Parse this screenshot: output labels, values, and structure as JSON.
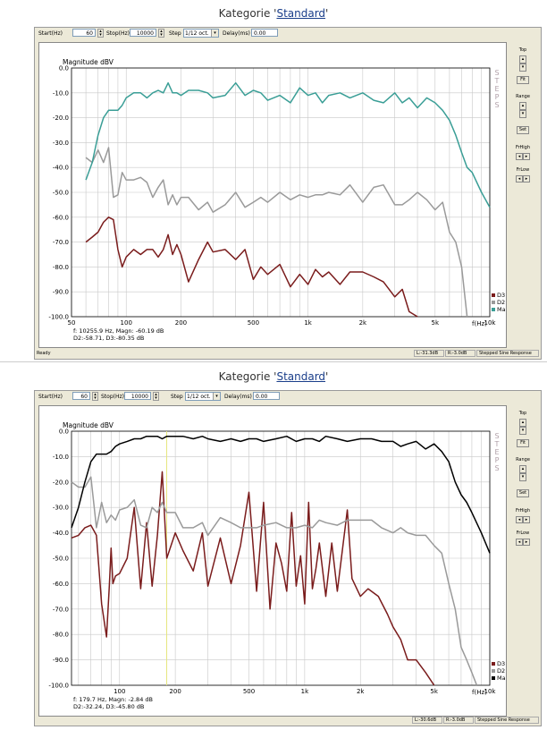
{
  "panels": [
    {
      "title_prefix": "Kategorie '",
      "title_link": "Standard",
      "title_suffix": "'",
      "toolbar": {
        "start_label": "Start(Hz)",
        "start_value": "60",
        "stop_label": "Stop(Hz)",
        "stop_value": "10000",
        "step_label": "Step",
        "step_value": "1/12 oct.",
        "delay_label": "Delay(ms)",
        "delay_value": "0.00"
      },
      "side": {
        "top": "Top",
        "fit": "Fit",
        "range": "Range",
        "set": "Set",
        "frhigh": "FrHigh",
        "frlow": "FrLow"
      },
      "readout": [
        "f: 10255.9 Hz, Magn: -60.19 dB",
        "D2:-58.71, D3:-80.35 dB"
      ],
      "status": {
        "left": "Ready",
        "l": "L:-31.3dB",
        "r": "R:-3.0dB",
        "mode": "Stepped Sine Response"
      },
      "chart_data": {
        "type": "line",
        "ylabel": "Magnitude dBV",
        "xlabel": "f(Hz)",
        "steps_label": "STEPS",
        "xscale": "log",
        "xlim": [
          50,
          10000
        ],
        "ylim": [
          -100,
          0
        ],
        "x_ticks": [
          {
            "v": 50,
            "label": "50"
          },
          {
            "v": 100,
            "label": "100"
          },
          {
            "v": 200,
            "label": "200"
          },
          {
            "v": 500,
            "label": "500"
          },
          {
            "v": 1000,
            "label": "1k"
          },
          {
            "v": 2000,
            "label": "2k"
          },
          {
            "v": 5000,
            "label": "5k"
          },
          {
            "v": 10000,
            "label": "10k"
          }
        ],
        "y_ticks": [
          {
            "v": 0,
            "label": "0.0"
          },
          {
            "v": -10,
            "label": "-10.0"
          },
          {
            "v": -20,
            "label": "-20.0"
          },
          {
            "v": -30,
            "label": "-30.0"
          },
          {
            "v": -40,
            "label": "-40.0"
          },
          {
            "v": -50,
            "label": "-50.0"
          },
          {
            "v": -60,
            "label": "-60.0"
          },
          {
            "v": -70,
            "label": "-70.0"
          },
          {
            "v": -80,
            "label": "-80.0"
          },
          {
            "v": -90,
            "label": "-90.0"
          },
          {
            "v": -100,
            "label": "-100.0"
          }
        ],
        "grid": true,
        "legend": "bottom-right",
        "series": [
          {
            "name": "Magn",
            "color": "#3a9e96",
            "x": [
              60,
              65,
              70,
              75,
              80,
              85,
              90,
              95,
              100,
              110,
              120,
              130,
              140,
              150,
              160,
              170,
              180,
              190,
              200,
              220,
              250,
              280,
              300,
              350,
              400,
              450,
              500,
              550,
              600,
              700,
              800,
              900,
              1000,
              1100,
              1200,
              1300,
              1500,
              1700,
              2000,
              2300,
              2600,
              3000,
              3300,
              3600,
              4000,
              4500,
              5000,
              5500,
              6000,
              6500,
              7000,
              7500,
              8000,
              9000,
              10000
            ],
            "y": [
              -45,
              -38,
              -27,
              -20,
              -17,
              -17,
              -17,
              -15,
              -12,
              -10,
              -10,
              -12,
              -10,
              -9,
              -10,
              -6,
              -10,
              -10,
              -11,
              -9,
              -9,
              -10,
              -12,
              -11,
              -6,
              -11,
              -9,
              -10,
              -13,
              -11,
              -14,
              -8,
              -11,
              -10,
              -14,
              -11,
              -10,
              -12,
              -10,
              -13,
              -14,
              -10,
              -14,
              -12,
              -16,
              -12,
              -14,
              -17,
              -21,
              -27,
              -34,
              -40,
              -42,
              -50,
              -56
            ]
          },
          {
            "name": "D2",
            "color": "#9a9a9a",
            "x": [
              60,
              65,
              70,
              75,
              80,
              85,
              90,
              95,
              100,
              110,
              120,
              130,
              140,
              150,
              160,
              170,
              180,
              190,
              200,
              220,
              250,
              280,
              300,
              350,
              400,
              450,
              500,
              550,
              600,
              700,
              800,
              900,
              1000,
              1100,
              1200,
              1300,
              1500,
              1700,
              2000,
              2300,
              2600,
              3000,
              3300,
              3600,
              4000,
              4500,
              5000,
              5500,
              6000,
              6500,
              7000,
              7500
            ],
            "y": [
              -36,
              -38,
              -33,
              -38,
              -32,
              -52,
              -51,
              -42,
              -45,
              -45,
              -44,
              -46,
              -52,
              -48,
              -45,
              -55,
              -51,
              -55,
              -52,
              -52,
              -57,
              -54,
              -58,
              -55,
              -50,
              -56,
              -54,
              -52,
              -54,
              -50,
              -53,
              -51,
              -52,
              -51,
              -51,
              -50,
              -51,
              -47,
              -54,
              -48,
              -47,
              -55,
              -55,
              -53,
              -50,
              -53,
              -57,
              -54,
              -66,
              -70,
              -80,
              -100
            ]
          },
          {
            "name": "D3",
            "color": "#7a1c1c",
            "x": [
              60,
              65,
              70,
              75,
              80,
              85,
              90,
              95,
              100,
              110,
              120,
              130,
              140,
              150,
              160,
              170,
              180,
              190,
              200,
              220,
              250,
              280,
              300,
              350,
              400,
              450,
              500,
              550,
              600,
              700,
              800,
              900,
              1000,
              1100,
              1200,
              1300,
              1500,
              1700,
              2000,
              2300,
              2600,
              3000,
              3300,
              3600,
              4000
            ],
            "y": [
              -70,
              -68,
              -66,
              -62,
              -60,
              -61,
              -73,
              -80,
              -76,
              -73,
              -75,
              -73,
              -73,
              -76,
              -73,
              -67,
              -75,
              -71,
              -75,
              -86,
              -77,
              -70,
              -74,
              -73,
              -77,
              -73,
              -85,
              -80,
              -83,
              -79,
              -88,
              -83,
              -87,
              -81,
              -84,
              -82,
              -87,
              -82,
              -82,
              -84,
              -86,
              -92,
              -89,
              -98,
              -100
            ]
          }
        ]
      }
    },
    {
      "title_prefix": "Kategorie '",
      "title_link": "Standard",
      "title_suffix": "'",
      "toolbar": {
        "start_label": "Start(Hz)",
        "start_value": "60",
        "stop_label": "Stop(Hz)",
        "stop_value": "10000",
        "step_label": "Step",
        "step_value": "1/12 oct.",
        "delay_label": "Delay(ms)",
        "delay_value": "0.00"
      },
      "side": {
        "top": "Top",
        "fit": "Fit",
        "range": "Range",
        "set": "Set",
        "frhigh": "FrHigh",
        "frlow": "FrLow"
      },
      "readout": [
        "f:  179.7 Hz, Magn: -2.84 dB",
        "D2:-32.24, D3:-45.80 dB"
      ],
      "status": {
        "left": "",
        "l": "L:-30.6dB",
        "r": "R:-3.0dB",
        "mode": "Stepped Sine Response"
      },
      "chart_data": {
        "type": "line",
        "ylabel": "Magnitude dBV",
        "xlabel": "f(Hz)",
        "steps_label": "STEPS",
        "xscale": "log",
        "xlim": [
          55,
          10000
        ],
        "ylim": [
          -100,
          0
        ],
        "x_ticks": [
          {
            "v": 100,
            "label": "100"
          },
          {
            "v": 200,
            "label": "200"
          },
          {
            "v": 500,
            "label": "500"
          },
          {
            "v": 1000,
            "label": "1k"
          },
          {
            "v": 2000,
            "label": "2k"
          },
          {
            "v": 5000,
            "label": "5k"
          },
          {
            "v": 10000,
            "label": "10k"
          }
        ],
        "y_ticks": [
          {
            "v": 0,
            "label": "0.0"
          },
          {
            "v": -10,
            "label": "-10.0"
          },
          {
            "v": -20,
            "label": "-20.0"
          },
          {
            "v": -30,
            "label": "-30.0"
          },
          {
            "v": -40,
            "label": "-40.0"
          },
          {
            "v": -50,
            "label": "-50.0"
          },
          {
            "v": -60,
            "label": "-60.0"
          },
          {
            "v": -70,
            "label": "-70.0"
          },
          {
            "v": -80,
            "label": "-80.0"
          },
          {
            "v": -90,
            "label": "-90.0"
          },
          {
            "v": -100,
            "label": "-100.0"
          }
        ],
        "grid": true,
        "legend": "bottom-right",
        "cursor_x": 179.7,
        "series": [
          {
            "name": "Magn",
            "color": "#000000",
            "x": [
              55,
              60,
              65,
              70,
              75,
              80,
              85,
              90,
              95,
              100,
              110,
              120,
              130,
              140,
              150,
              160,
              170,
              180,
              200,
              220,
              250,
              280,
              300,
              350,
              400,
              450,
              500,
              550,
              600,
              700,
              800,
              900,
              1000,
              1100,
              1200,
              1300,
              1500,
              1700,
              2000,
              2300,
              2600,
              3000,
              3300,
              3600,
              4000,
              4500,
              5000,
              5500,
              6000,
              6500,
              7000,
              7500,
              8000,
              9000,
              10000
            ],
            "y": [
              -38,
              -30,
              -20,
              -12,
              -9,
              -9,
              -9,
              -8,
              -6,
              -5,
              -4,
              -3,
              -3,
              -2,
              -2,
              -2,
              -3,
              -2,
              -2,
              -2,
              -3,
              -2,
              -3,
              -4,
              -3,
              -4,
              -3,
              -3,
              -4,
              -3,
              -2,
              -4,
              -3,
              -3,
              -4,
              -2,
              -3,
              -4,
              -3,
              -3,
              -4,
              -4,
              -6,
              -5,
              -4,
              -7,
              -5,
              -8,
              -12,
              -20,
              -25,
              -28,
              -32,
              -40,
              -48
            ]
          },
          {
            "name": "D2",
            "color": "#9a9a9a",
            "x": [
              55,
              60,
              65,
              70,
              75,
              80,
              85,
              90,
              95,
              100,
              110,
              120,
              130,
              140,
              150,
              160,
              170,
              180,
              200,
              220,
              250,
              280,
              300,
              350,
              400,
              450,
              500,
              550,
              600,
              700,
              800,
              900,
              1000,
              1100,
              1200,
              1300,
              1500,
              1700,
              2000,
              2300,
              2600,
              3000,
              3300,
              3600,
              4000,
              4500,
              5000,
              5500,
              6000,
              6500,
              7000,
              7500,
              8000,
              8500
            ],
            "y": [
              -20,
              -22,
              -22,
              -18,
              -38,
              -28,
              -36,
              -33,
              -35,
              -31,
              -30,
              -27,
              -37,
              -38,
              -30,
              -32,
              -28,
              -32,
              -32,
              -38,
              -38,
              -36,
              -41,
              -34,
              -36,
              -38,
              -38,
              -38,
              -37,
              -36,
              -38,
              -38,
              -37,
              -38,
              -35,
              -36,
              -37,
              -35,
              -35,
              -35,
              -38,
              -40,
              -38,
              -40,
              -41,
              -41,
              -45,
              -48,
              -60,
              -70,
              -85,
              -90,
              -95,
              -100
            ]
          },
          {
            "name": "D3",
            "color": "#7a1c1c",
            "x": [
              55,
              60,
              65,
              70,
              75,
              80,
              85,
              88,
              90,
              92,
              95,
              100,
              110,
              120,
              130,
              140,
              150,
              160,
              170,
              180,
              200,
              220,
              250,
              280,
              300,
              350,
              400,
              450,
              500,
              550,
              600,
              650,
              700,
              750,
              800,
              850,
              900,
              950,
              1000,
              1050,
              1100,
              1150,
              1200,
              1300,
              1400,
              1500,
              1700,
              1800,
              2000,
              2200,
              2500,
              2800,
              3000,
              3300,
              3600,
              4000,
              4500,
              5000
            ],
            "y": [
              -42,
              -41,
              -38,
              -37,
              -41,
              -68,
              -81,
              -61,
              -46,
              -60,
              -57,
              -56,
              -50,
              -30,
              -62,
              -36,
              -61,
              -41,
              -16,
              -50,
              -40,
              -47,
              -55,
              -40,
              -61,
              -42,
              -60,
              -45,
              -24,
              -63,
              -28,
              -70,
              -44,
              -52,
              -63,
              -32,
              -61,
              -49,
              -68,
              -28,
              -62,
              -54,
              -44,
              -65,
              -44,
              -63,
              -31,
              -58,
              -65,
              -62,
              -65,
              -72,
              -77,
              -82,
              -90,
              -90,
              -95,
              -100
            ]
          }
        ]
      }
    }
  ]
}
